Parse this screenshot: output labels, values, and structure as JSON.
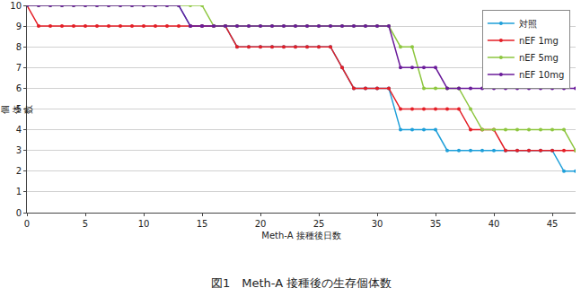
{
  "chart_data": {
    "type": "line",
    "title": "図1　Meth-A 接種後の生存個体数",
    "x_label": "Meth-A 接種後日数",
    "y_label": "個体数",
    "x": [
      0,
      1,
      2,
      3,
      4,
      5,
      6,
      7,
      8,
      9,
      10,
      11,
      12,
      13,
      14,
      15,
      16,
      17,
      18,
      19,
      20,
      21,
      22,
      23,
      24,
      25,
      26,
      27,
      28,
      29,
      30,
      31,
      32,
      33,
      34,
      35,
      36,
      37,
      38,
      39,
      40,
      41,
      42,
      43,
      44,
      45,
      46,
      47
    ],
    "series": [
      {
        "name": "対照",
        "color": "#1e9fd9",
        "values": [
          10,
          10,
          10,
          10,
          10,
          10,
          10,
          10,
          10,
          10,
          10,
          10,
          10,
          10,
          9,
          9,
          9,
          9,
          8,
          8,
          8,
          8,
          8,
          8,
          8,
          8,
          8,
          7,
          6,
          6,
          6,
          6,
          4,
          4,
          4,
          4,
          3,
          3,
          3,
          3,
          3,
          3,
          3,
          3,
          3,
          3,
          2,
          2
        ]
      },
      {
        "name": "nEF 1mg",
        "color": "#e41e26",
        "values": [
          10,
          9,
          9,
          9,
          9,
          9,
          9,
          9,
          9,
          9,
          9,
          9,
          9,
          9,
          9,
          9,
          9,
          9,
          8,
          8,
          8,
          8,
          8,
          8,
          8,
          8,
          8,
          7,
          6,
          6,
          6,
          6,
          5,
          5,
          5,
          5,
          5,
          5,
          4,
          4,
          4,
          3,
          3,
          3,
          3,
          3,
          3,
          3
        ]
      },
      {
        "name": "nEF 5mg",
        "color": "#8dc63f",
        "values": [
          10,
          10,
          10,
          10,
          10,
          10,
          10,
          10,
          10,
          10,
          10,
          10,
          10,
          10,
          10,
          10,
          9,
          9,
          9,
          9,
          9,
          9,
          9,
          9,
          9,
          9,
          9,
          9,
          9,
          9,
          9,
          9,
          8,
          8,
          6,
          6,
          6,
          6,
          5,
          4,
          4,
          4,
          4,
          4,
          4,
          4,
          4,
          3
        ]
      },
      {
        "name": "nEF 10mg",
        "color": "#6a1b9a",
        "values": [
          10,
          10,
          10,
          10,
          10,
          10,
          10,
          10,
          10,
          10,
          10,
          10,
          10,
          10,
          9,
          9,
          9,
          9,
          9,
          9,
          9,
          9,
          9,
          9,
          9,
          9,
          9,
          9,
          9,
          9,
          9,
          9,
          7,
          7,
          7,
          7,
          6,
          6,
          6,
          6,
          6,
          6,
          6,
          6,
          6,
          6,
          6,
          6
        ]
      }
    ],
    "xlim": [
      0,
      47
    ],
    "xticks": [
      0,
      5,
      10,
      15,
      20,
      25,
      30,
      35,
      40,
      45
    ],
    "ylim": [
      0,
      10
    ],
    "yticks": [
      0,
      1,
      2,
      3,
      4,
      5,
      6,
      7,
      8,
      9,
      10
    ],
    "grid": true,
    "legend": "upper right",
    "marker": "circle"
  }
}
